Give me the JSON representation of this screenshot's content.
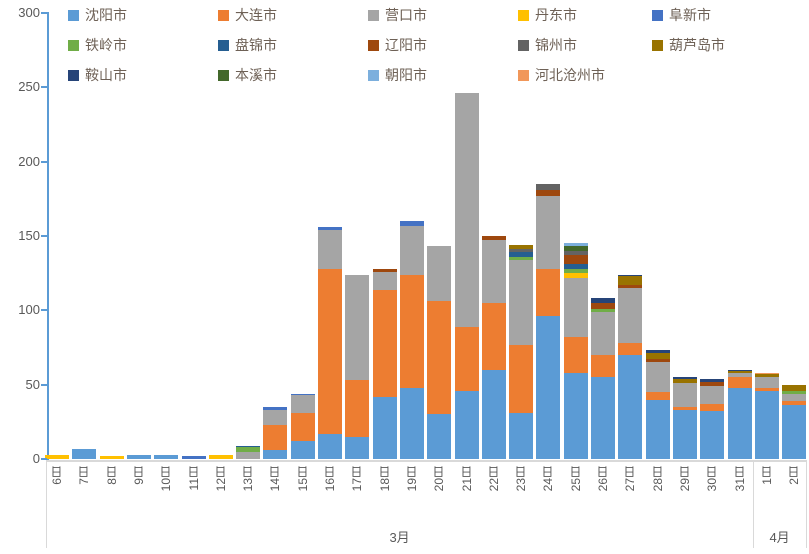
{
  "chart_data": {
    "type": "bar",
    "stacked": true,
    "grid": "off",
    "legend_position": "top",
    "title": "",
    "xlabel": "",
    "ylabel": "",
    "ylim": [
      0,
      300
    ],
    "yticks": [
      0,
      50,
      100,
      150,
      200,
      250,
      300
    ],
    "categories": [
      "6日",
      "7日",
      "8日",
      "9日",
      "10日",
      "11日",
      "12日",
      "13日",
      "14日",
      "15日",
      "16日",
      "17日",
      "18日",
      "19日",
      "20日",
      "21日",
      "22日",
      "23日",
      "24日",
      "25日",
      "26日",
      "27日",
      "28日",
      "29日",
      "30日",
      "31日",
      "1日",
      "2日"
    ],
    "month_groups": [
      {
        "label": "3月",
        "start": 0,
        "count": 26
      },
      {
        "label": "4月",
        "start": 26,
        "count": 2
      }
    ],
    "series": [
      {
        "name": "沈阳市",
        "color": "#5B9BD5",
        "values": [
          0,
          7,
          0,
          3,
          3,
          0,
          0,
          0,
          6,
          12,
          17,
          15,
          42,
          48,
          30,
          46,
          60,
          31,
          96,
          58,
          55,
          70,
          40,
          33,
          32,
          48,
          46,
          36
        ]
      },
      {
        "name": "大连市",
        "color": "#ED7D31",
        "values": [
          0,
          0,
          0,
          0,
          0,
          0,
          0,
          0,
          17,
          19,
          111,
          38,
          72,
          76,
          76,
          43,
          45,
          46,
          32,
          24,
          15,
          8,
          5,
          2,
          5,
          7,
          2,
          3
        ]
      },
      {
        "name": "营口市",
        "color": "#A5A5A5",
        "values": [
          0,
          0,
          0,
          0,
          0,
          0,
          0,
          5,
          10,
          12,
          26,
          71,
          12,
          33,
          37,
          157,
          42,
          57,
          49,
          40,
          29,
          37,
          20,
          16,
          12,
          3,
          7,
          5
        ]
      },
      {
        "name": "丹东市",
        "color": "#FFC000",
        "values": [
          3,
          0,
          2,
          0,
          0,
          0,
          3,
          0,
          0,
          0,
          0,
          0,
          0,
          0,
          0,
          0,
          0,
          0,
          0,
          3,
          0,
          0,
          0,
          0,
          0,
          0,
          0,
          0
        ]
      },
      {
        "name": "阜新市",
        "color": "#4472C4",
        "values": [
          0,
          0,
          0,
          0,
          0,
          2,
          0,
          0,
          2,
          1,
          2,
          0,
          0,
          3,
          0,
          0,
          0,
          0,
          0,
          0,
          0,
          0,
          0,
          0,
          0,
          0,
          0,
          0
        ]
      },
      {
        "name": "铁岭市",
        "color": "#70AD47",
        "values": [
          0,
          0,
          0,
          0,
          0,
          0,
          0,
          3,
          0,
          0,
          0,
          0,
          0,
          0,
          0,
          0,
          0,
          2,
          0,
          3,
          2,
          0,
          0,
          0,
          0,
          0,
          0,
          2
        ]
      },
      {
        "name": "盘锦市",
        "color": "#255E91",
        "values": [
          0,
          0,
          0,
          0,
          0,
          0,
          0,
          1,
          0,
          0,
          0,
          0,
          0,
          0,
          0,
          0,
          0,
          3,
          0,
          3,
          0,
          0,
          0,
          0,
          0,
          0,
          0,
          0
        ]
      },
      {
        "name": "辽阳市",
        "color": "#9E480E",
        "values": [
          0,
          0,
          0,
          0,
          0,
          0,
          0,
          0,
          0,
          0,
          0,
          0,
          2,
          0,
          0,
          0,
          3,
          0,
          4,
          6,
          4,
          2,
          2,
          0,
          3,
          0,
          0,
          0
        ]
      },
      {
        "name": "锦州市",
        "color": "#636363",
        "values": [
          0,
          0,
          0,
          0,
          0,
          0,
          0,
          0,
          0,
          0,
          0,
          0,
          0,
          0,
          0,
          0,
          0,
          2,
          4,
          3,
          0,
          0,
          0,
          0,
          0,
          0,
          0,
          0
        ]
      },
      {
        "name": "葫芦岛市",
        "color": "#997300",
        "values": [
          0,
          0,
          0,
          0,
          0,
          0,
          0,
          0,
          0,
          0,
          0,
          0,
          0,
          0,
          0,
          0,
          0,
          3,
          0,
          0,
          0,
          6,
          4,
          3,
          0,
          1,
          2,
          4
        ]
      },
      {
        "name": "鞍山市",
        "color": "#264478",
        "values": [
          0,
          0,
          0,
          0,
          0,
          0,
          0,
          0,
          0,
          0,
          0,
          0,
          0,
          0,
          0,
          0,
          0,
          0,
          0,
          0,
          3,
          1,
          2,
          1,
          2,
          1,
          0,
          0
        ]
      },
      {
        "name": "本溪市",
        "color": "#43682B",
        "values": [
          0,
          0,
          0,
          0,
          0,
          0,
          0,
          0,
          0,
          0,
          0,
          0,
          0,
          0,
          0,
          0,
          0,
          0,
          0,
          3,
          0,
          0,
          0,
          0,
          0,
          0,
          0,
          0
        ]
      },
      {
        "name": "朝阳市",
        "color": "#7CAFDD",
        "values": [
          0,
          0,
          0,
          0,
          0,
          0,
          0,
          0,
          0,
          0,
          0,
          0,
          0,
          0,
          0,
          0,
          0,
          0,
          0,
          2,
          0,
          0,
          0,
          0,
          0,
          0,
          0,
          0
        ]
      },
      {
        "name": "河北沧州市",
        "color": "#F1975A",
        "values": [
          0,
          0,
          0,
          0,
          0,
          0,
          0,
          0,
          0,
          0,
          0,
          0,
          0,
          0,
          0,
          0,
          0,
          0,
          0,
          0,
          0,
          0,
          0,
          0,
          0,
          0,
          1,
          0
        ]
      }
    ]
  }
}
